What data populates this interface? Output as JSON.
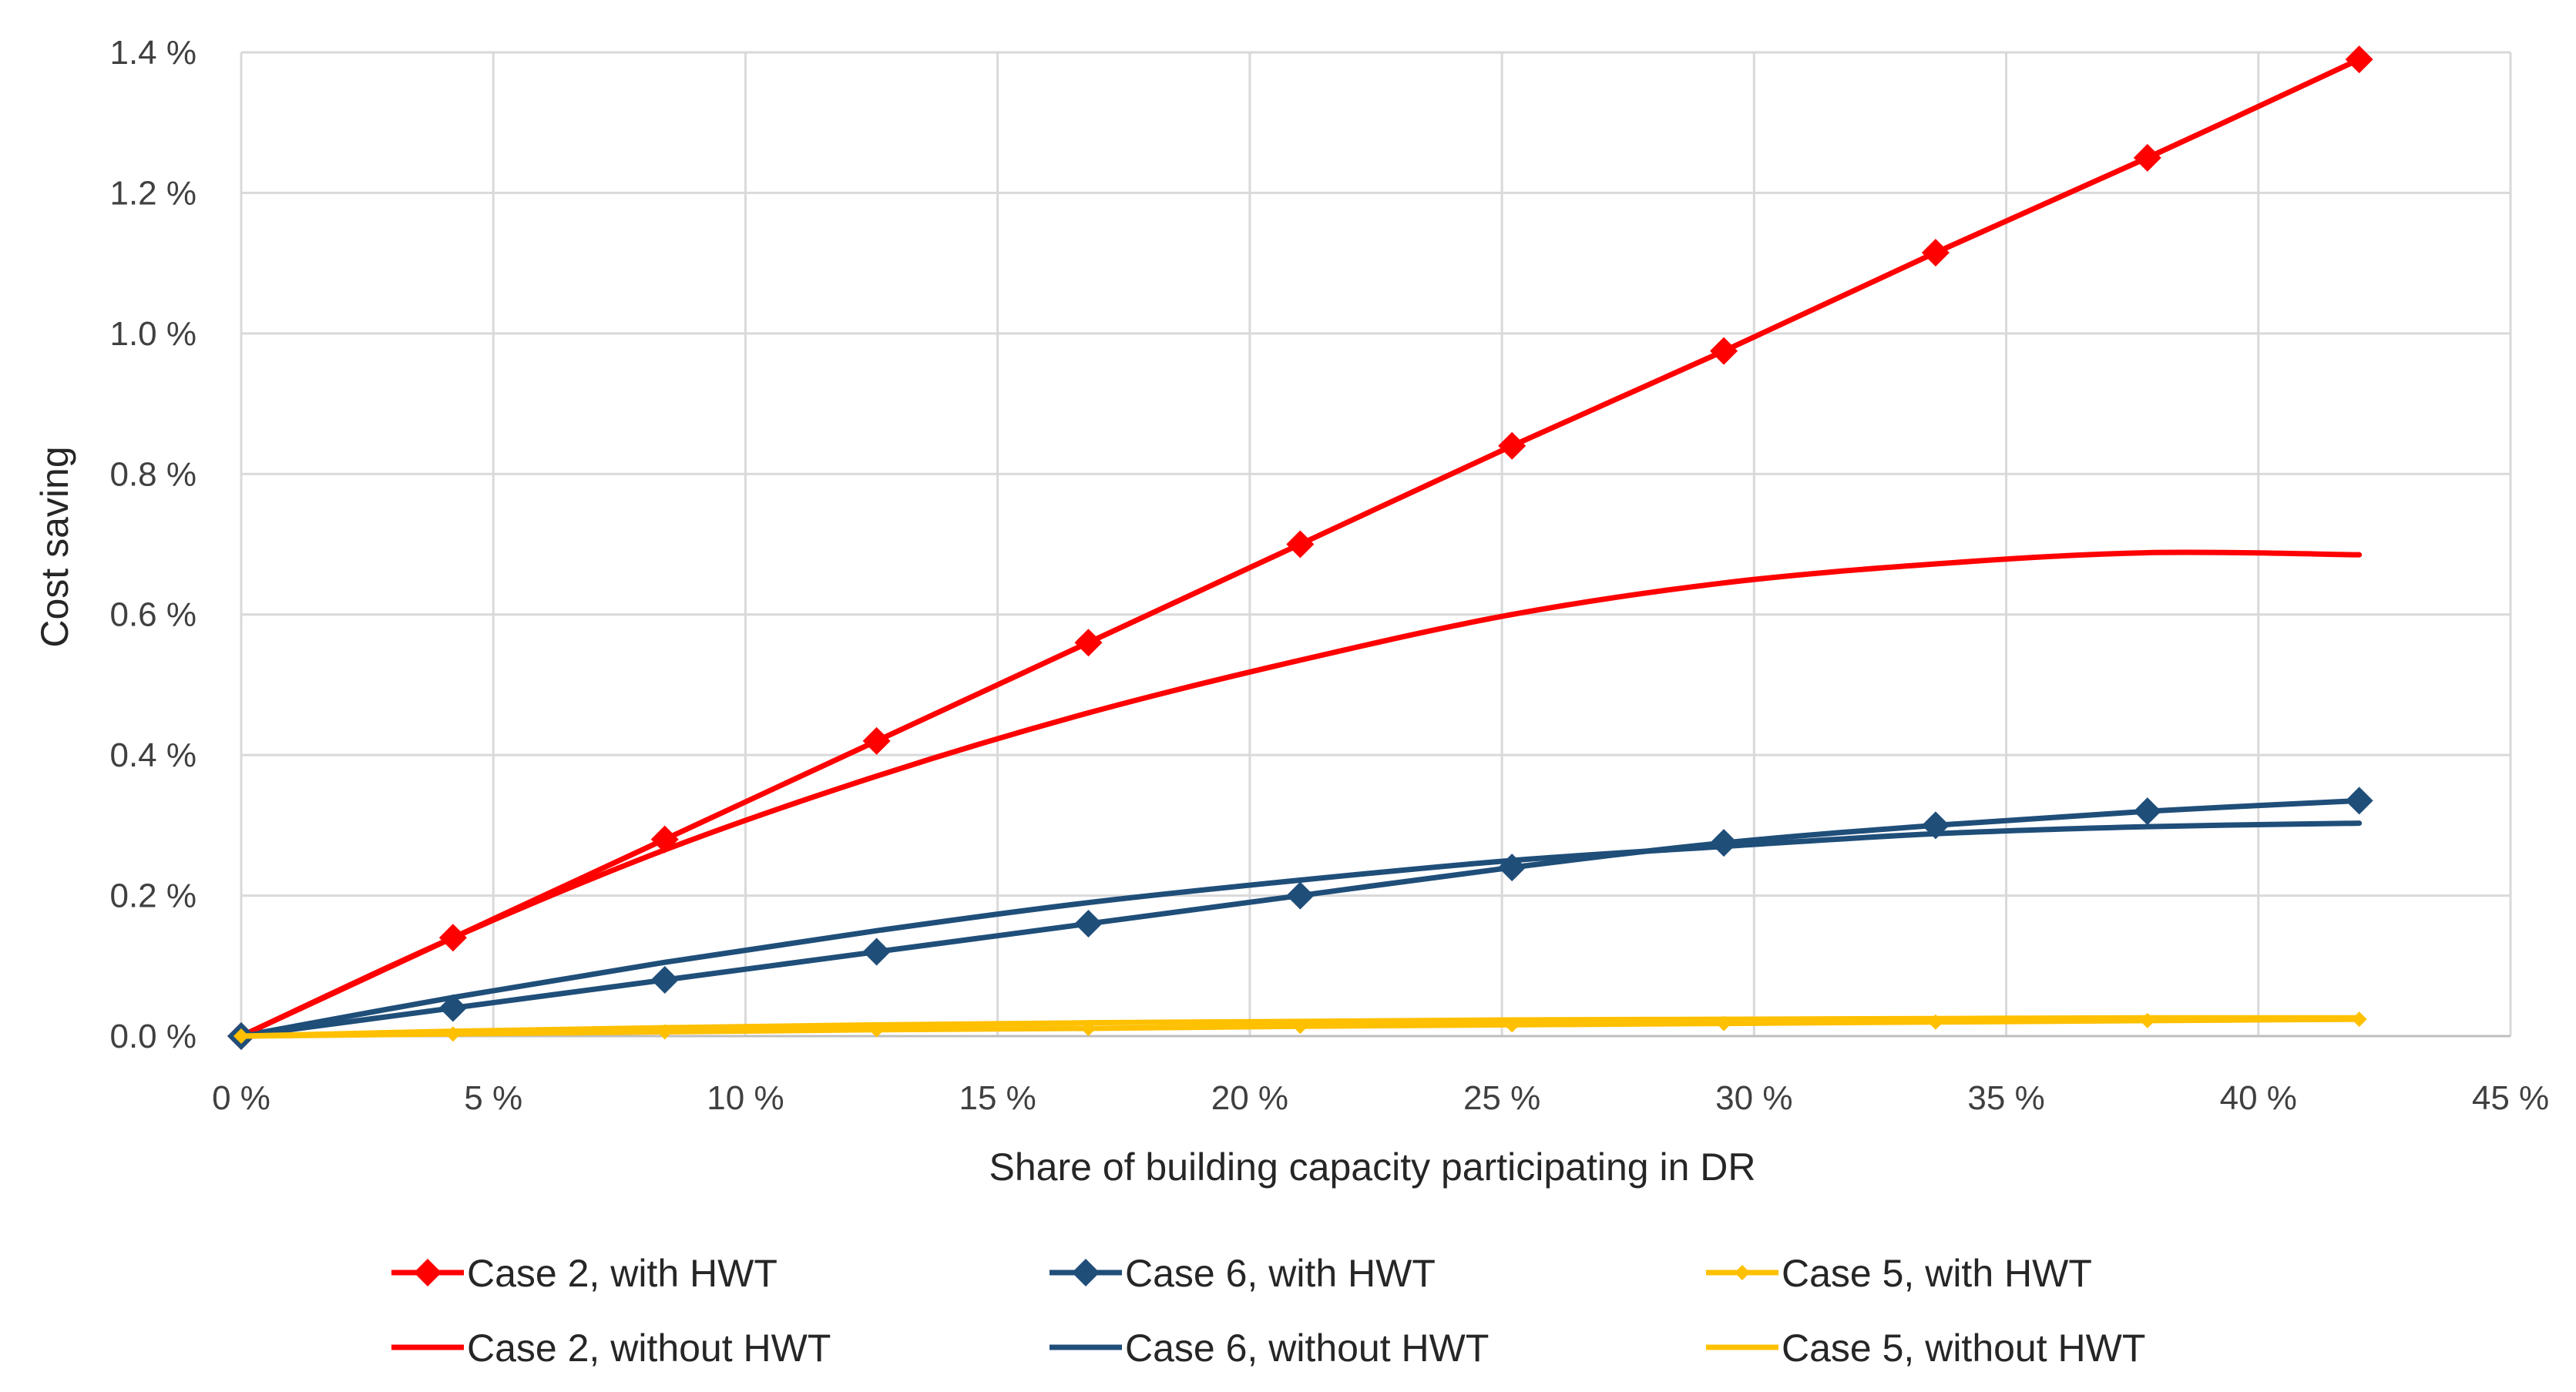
{
  "chart_data": {
    "type": "line",
    "title": "",
    "xlabel": "Share of building capacity participating in DR",
    "ylabel": "Cost saving",
    "xlim": [
      0,
      45
    ],
    "ylim": [
      0,
      1.4
    ],
    "x_ticks": [
      "0 %",
      "5 %",
      "10 %",
      "15 %",
      "20 %",
      "25 %",
      "30 %",
      "35 %",
      "40 %",
      "45 %"
    ],
    "y_ticks": [
      "0.0 %",
      "0.2 %",
      "0.4 %",
      "0.6 %",
      "0.8 %",
      "1.0 %",
      "1.2 %",
      "1.4 %"
    ],
    "grid": true,
    "legend_position": "bottom",
    "series": [
      {
        "name": "Case 2, with HWT",
        "color": "#FF0000",
        "marker": "diamond",
        "markerSize": "large",
        "x": [
          0,
          4.2,
          8.4,
          12.6,
          16.8,
          21.0,
          25.2,
          29.4,
          33.6,
          37.8,
          42.0
        ],
        "y": [
          0,
          0.14,
          0.28,
          0.42,
          0.56,
          0.7,
          0.84,
          0.975,
          1.115,
          1.25,
          1.39
        ]
      },
      {
        "name": "Case 6, with HWT",
        "color": "#1F4E79",
        "marker": "diamond",
        "markerSize": "large",
        "x": [
          0,
          4.2,
          8.4,
          12.6,
          16.8,
          21.0,
          25.2,
          29.4,
          33.6,
          37.8,
          42.0
        ],
        "y": [
          0,
          0.04,
          0.08,
          0.12,
          0.16,
          0.2,
          0.24,
          0.275,
          0.3,
          0.32,
          0.335
        ]
      },
      {
        "name": "Case 5, with HWT",
        "color": "#FFC000",
        "marker": "diamond",
        "markerSize": "small",
        "x": [
          0,
          4.2,
          8.4,
          12.6,
          16.8,
          21.0,
          25.2,
          29.4,
          33.6,
          37.8,
          42.0
        ],
        "y": [
          0,
          0.003,
          0.006,
          0.009,
          0.011,
          0.014,
          0.016,
          0.018,
          0.02,
          0.022,
          0.024
        ]
      },
      {
        "name": "Case 2, without HWT",
        "color": "#FF0000",
        "marker": "none",
        "x": [
          0,
          4.2,
          8.4,
          12.6,
          16.8,
          21.0,
          25.2,
          29.4,
          33.6,
          37.8,
          42.0
        ],
        "y": [
          0,
          0.14,
          0.265,
          0.37,
          0.46,
          0.535,
          0.6,
          0.645,
          0.672,
          0.688,
          0.685
        ]
      },
      {
        "name": "Case 6, without HWT",
        "color": "#1F4E79",
        "marker": "none",
        "x": [
          0,
          4.2,
          8.4,
          12.6,
          16.8,
          21.0,
          25.2,
          29.4,
          33.6,
          37.8,
          42.0
        ],
        "y": [
          0,
          0.055,
          0.105,
          0.15,
          0.19,
          0.222,
          0.25,
          0.27,
          0.288,
          0.298,
          0.303
        ]
      },
      {
        "name": "Case 5, without HWT",
        "color": "#FFC000",
        "marker": "none",
        "x": [
          0,
          4.2,
          8.4,
          12.6,
          16.8,
          21.0,
          25.2,
          29.4,
          33.6,
          37.8,
          42.0
        ],
        "y": [
          0,
          0.007,
          0.012,
          0.016,
          0.019,
          0.021,
          0.023,
          0.024,
          0.025,
          0.026,
          0.026
        ]
      }
    ]
  }
}
